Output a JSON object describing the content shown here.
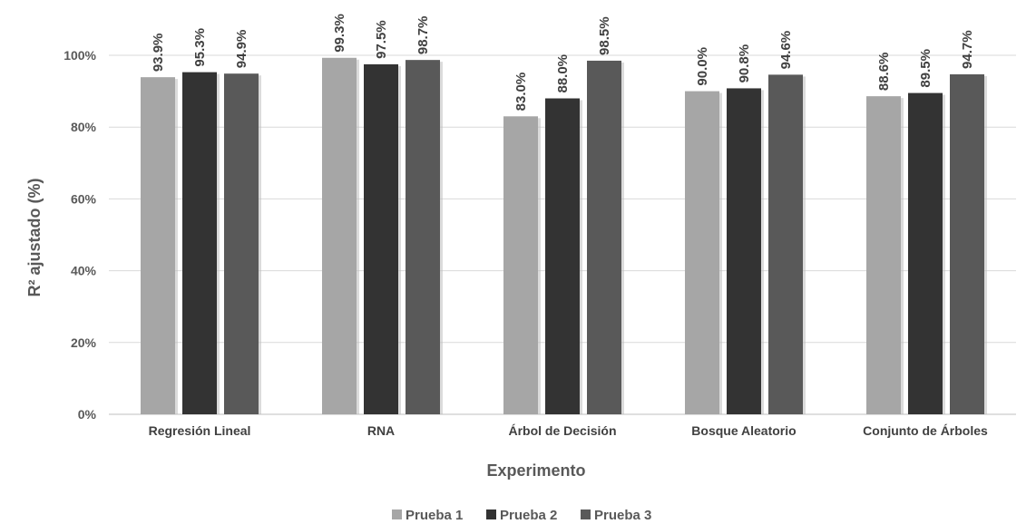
{
  "chart_data": {
    "type": "bar",
    "title": "",
    "xlabel": "Experimento",
    "ylabel": "R² ajustado (%)",
    "ylim": [
      0,
      100
    ],
    "yticks": [
      0,
      20,
      40,
      60,
      80,
      100
    ],
    "ytick_labels": [
      "0%",
      "20%",
      "40%",
      "60%",
      "80%",
      "100%"
    ],
    "grid": true,
    "legend_position": "bottom",
    "categories": [
      "Regresión Lineal",
      "RNA",
      "Árbol de Decisión",
      "Bosque Aleatorio",
      "Conjunto de Árboles"
    ],
    "series": [
      {
        "name": "Prueba 1",
        "color": "#a6a6a6",
        "values": [
          93.9,
          99.3,
          83.0,
          90.0,
          88.6
        ],
        "labels": [
          "93.9%",
          "99.3%",
          "83.0%",
          "90.0%",
          "88.6%"
        ]
      },
      {
        "name": "Prueba 2",
        "color": "#333333",
        "values": [
          95.3,
          97.5,
          88.0,
          90.8,
          89.5
        ],
        "labels": [
          "95.3%",
          "97.5%",
          "88.0%",
          "90.8%",
          "89.5%"
        ]
      },
      {
        "name": "Prueba 3",
        "color": "#595959",
        "values": [
          94.9,
          98.7,
          98.5,
          94.6,
          94.7
        ],
        "labels": [
          "94.9%",
          "98.7%",
          "98.5%",
          "94.6%",
          "94.7%"
        ]
      }
    ]
  }
}
